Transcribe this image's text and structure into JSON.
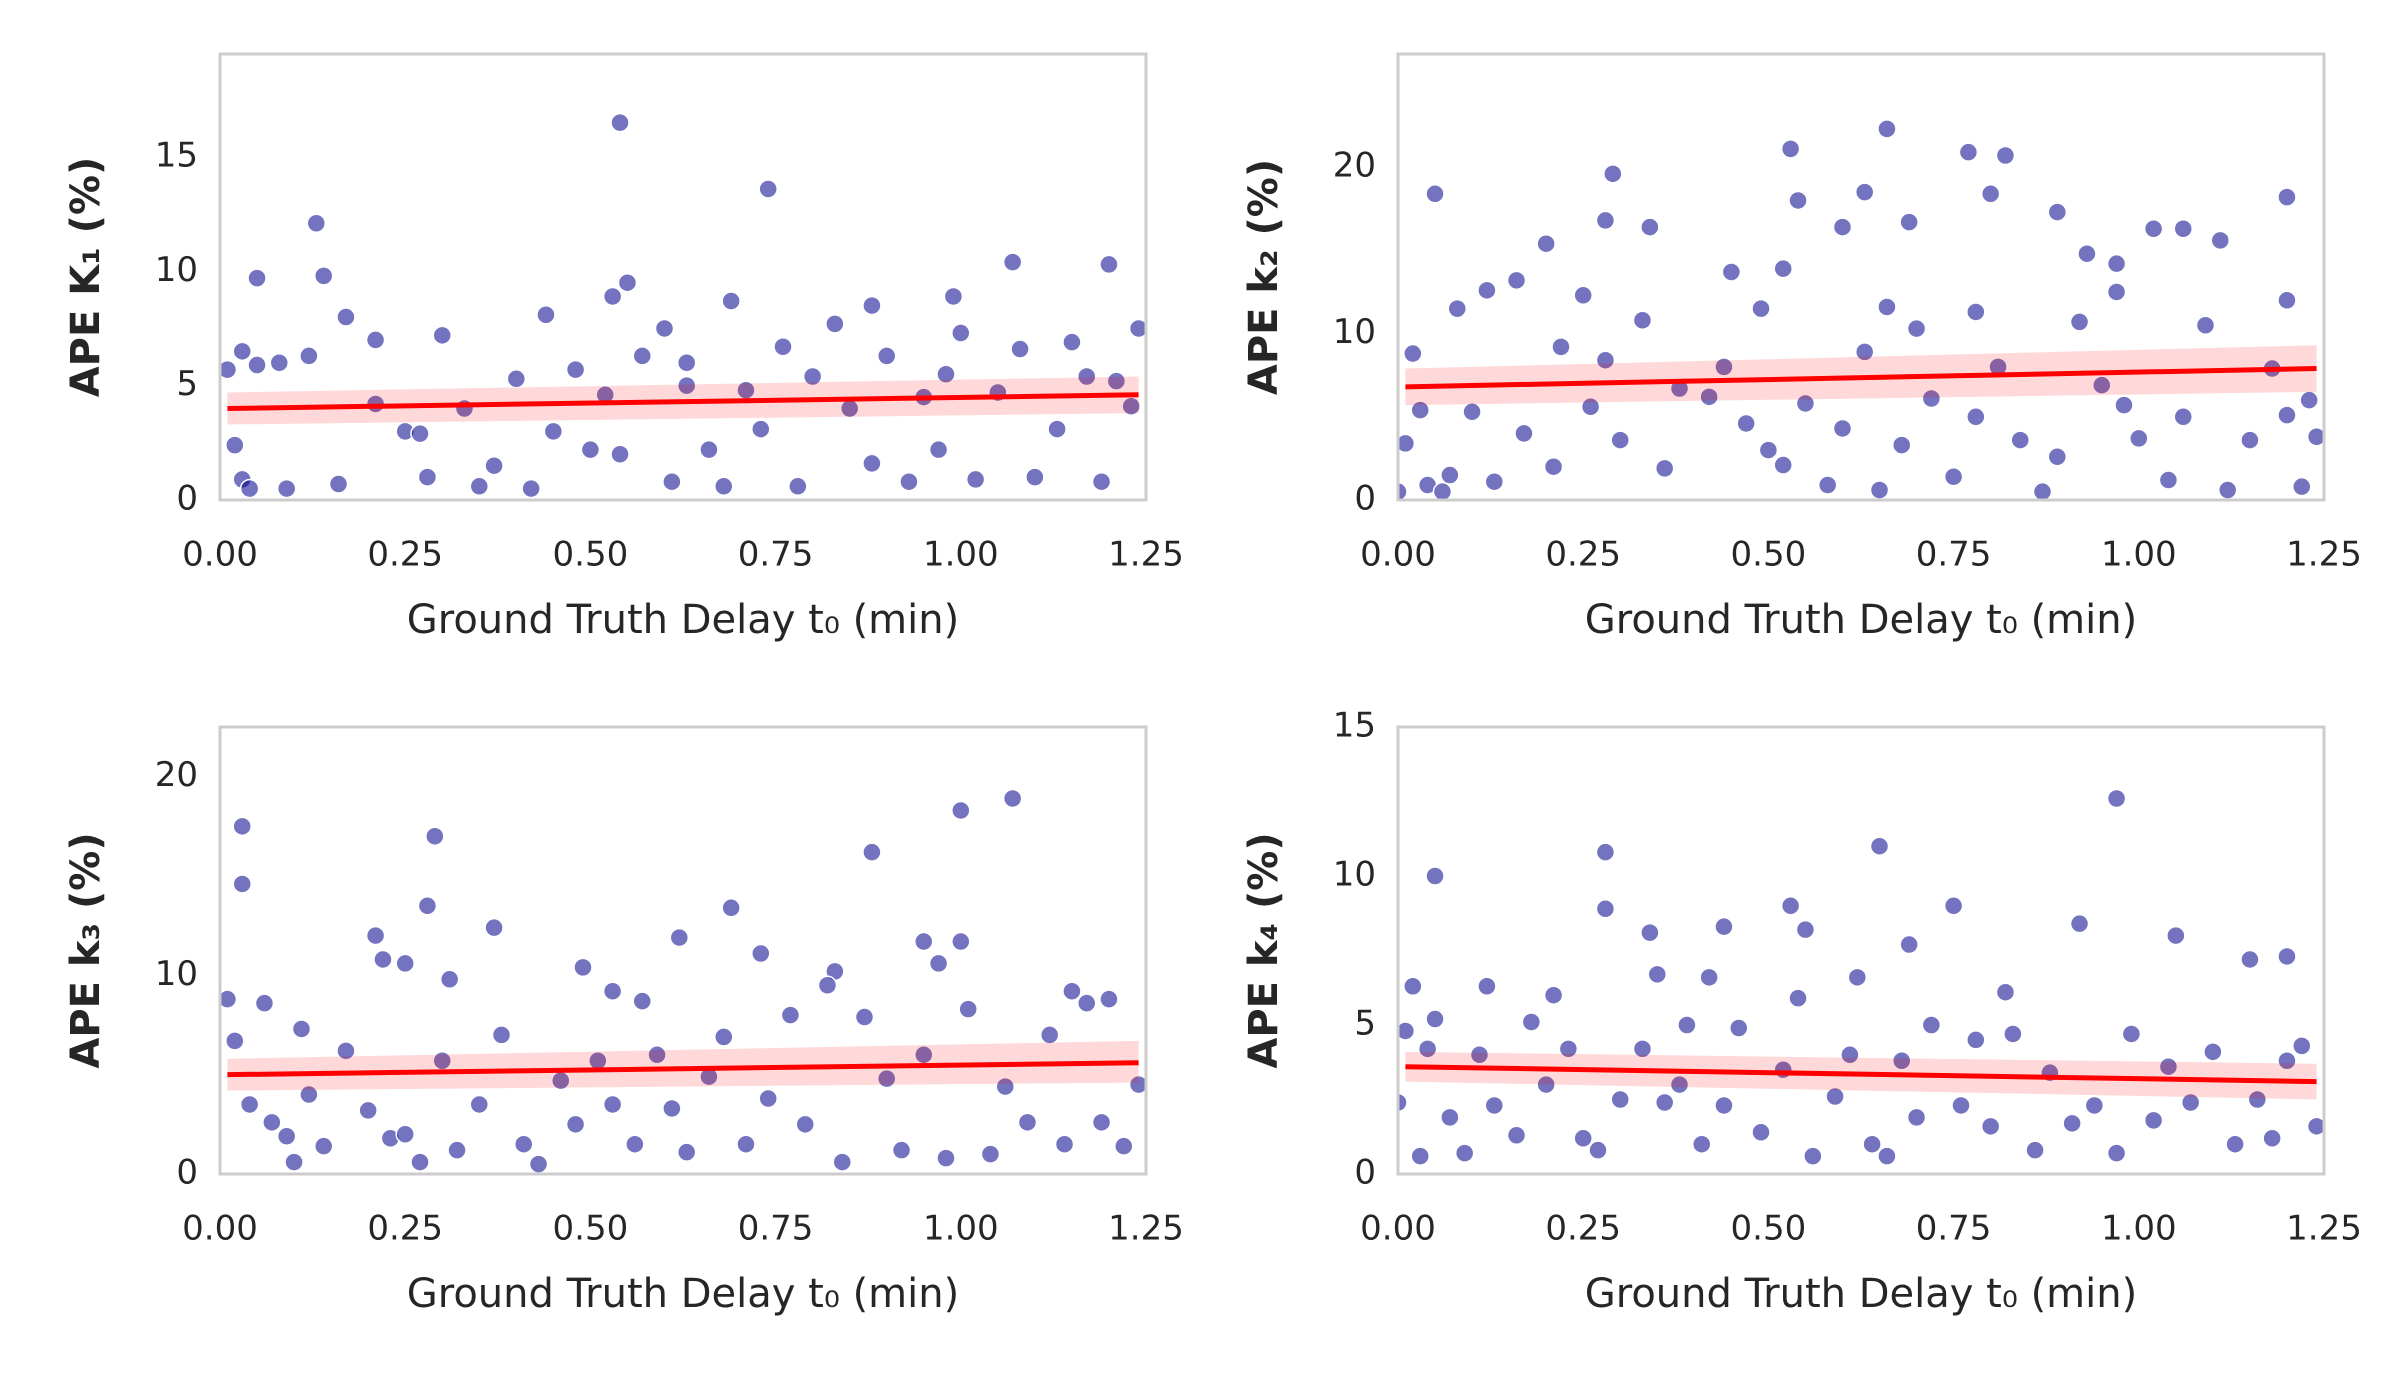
{
  "chart_data": [
    {
      "type": "scatter",
      "xlabel": "Ground Truth Delay t₀ (min)",
      "ylabel": "APE K₁ (%)",
      "color": "#00008b",
      "x": [
        0.54,
        0.74,
        0.13,
        0.14,
        0.05,
        1.07,
        1.2,
        0.99,
        0.53,
        0.55,
        0.69,
        0.88,
        0.17,
        0.44,
        0.01,
        0.03,
        0.05,
        0.08,
        0.12,
        0.02,
        0.03,
        0.04,
        0.09,
        0.16,
        0.21,
        0.21,
        0.25,
        0.27,
        0.28,
        0.3,
        0.33,
        0.35,
        0.37,
        0.4,
        0.45,
        0.48,
        0.5,
        0.52,
        0.54,
        0.57,
        0.6,
        0.61,
        0.63,
        0.66,
        0.68,
        0.71,
        0.73,
        0.76,
        0.78,
        0.8,
        0.83,
        0.85,
        0.88,
        0.9,
        0.93,
        0.95,
        0.97,
        1.0,
        1.02,
        1.05,
        1.08,
        1.1,
        1.13,
        1.15,
        1.17,
        1.19,
        1.21,
        1.23,
        1.24,
        0.42,
        0.98,
        0.63
      ],
      "y": [
        16.5,
        13.6,
        12.1,
        9.8,
        9.7,
        10.4,
        10.3,
        8.9,
        8.9,
        9.5,
        8.7,
        8.5,
        8.0,
        8.1,
        5.7,
        6.5,
        5.9,
        6.0,
        6.3,
        2.4,
        0.9,
        0.5,
        0.5,
        0.7,
        7.0,
        4.2,
        3.0,
        2.9,
        1.0,
        7.2,
        4.0,
        0.6,
        1.5,
        5.3,
        3.0,
        5.7,
        2.2,
        4.6,
        2.0,
        6.3,
        7.5,
        0.8,
        6.0,
        2.2,
        0.6,
        4.8,
        3.1,
        6.7,
        0.6,
        5.4,
        7.7,
        4.0,
        1.6,
        6.3,
        0.8,
        4.5,
        2.2,
        7.3,
        0.9,
        4.7,
        6.6,
        1.0,
        3.1,
        6.9,
        5.4,
        0.8,
        5.2,
        4.1,
        7.5,
        0.5,
        5.5,
        5.0
      ],
      "fit": {
        "color": "#ff0000",
        "x": [
          0.01,
          1.24
        ],
        "y": [
          4.0,
          4.6
        ],
        "lower": [
          3.3,
          3.8
        ],
        "upper": [
          4.7,
          5.4
        ]
      },
      "xlim": [
        0,
        1.25
      ],
      "xticks": [
        {
          "value": 0,
          "label": "0.00"
        },
        {
          "value": 0.25,
          "label": "0.25"
        },
        {
          "value": 0.5,
          "label": "0.50"
        },
        {
          "value": 0.75,
          "label": "0.75"
        },
        {
          "value": 1,
          "label": "1.00"
        },
        {
          "value": 1.25,
          "label": "1.25"
        }
      ],
      "ylim": [
        0,
        19.5
      ],
      "yticks": [
        0,
        5,
        10,
        15
      ],
      "grid": false
    },
    {
      "type": "scatter",
      "xlabel": "Ground Truth Delay t₀ (min)",
      "ylabel": "APE k₂ (%)",
      "color": "#00008b",
      "x": [
        0.66,
        0.53,
        0.77,
        0.82,
        0.29,
        0.05,
        0.63,
        0.54,
        0.8,
        1.2,
        0.89,
        0.34,
        0.28,
        0.69,
        0.6,
        1.02,
        1.06,
        0.2,
        0.93,
        0.97,
        1.11,
        0.16,
        0.45,
        0.52,
        0.25,
        0.12,
        0.08,
        0.49,
        0.66,
        0.78,
        0.97,
        1.2,
        0.02,
        0.03,
        0.04,
        0.06,
        0.07,
        0.1,
        0.13,
        0.17,
        0.21,
        0.22,
        0.26,
        0.28,
        0.3,
        0.33,
        0.36,
        0.38,
        0.42,
        0.44,
        0.47,
        0.5,
        0.52,
        0.55,
        0.58,
        0.6,
        0.63,
        0.65,
        0.68,
        0.7,
        0.72,
        0.75,
        0.78,
        0.81,
        0.84,
        0.87,
        0.89,
        0.92,
        0.95,
        0.98,
        1.0,
        1.04,
        1.06,
        1.09,
        1.12,
        1.15,
        1.18,
        1.2,
        1.22,
        1.24,
        1.23,
        0.01,
        0.0
      ],
      "y": [
        22.3,
        21.1,
        20.9,
        20.7,
        19.6,
        18.4,
        18.5,
        18.0,
        18.4,
        18.2,
        17.3,
        16.4,
        16.8,
        16.7,
        16.4,
        16.3,
        16.3,
        15.4,
        14.8,
        14.2,
        15.6,
        13.2,
        13.7,
        13.9,
        12.3,
        12.6,
        11.5,
        11.5,
        11.6,
        11.3,
        12.5,
        12.0,
        8.8,
        5.4,
        0.9,
        0.5,
        1.5,
        5.3,
        1.1,
        4.0,
        2.0,
        9.2,
        5.6,
        8.4,
        3.6,
        10.8,
        1.9,
        6.7,
        6.2,
        8.0,
        4.6,
        3.0,
        2.1,
        5.8,
        0.9,
        4.3,
        8.9,
        0.6,
        3.3,
        10.3,
        6.1,
        1.4,
        5.0,
        8.0,
        3.6,
        0.5,
        2.6,
        10.7,
        6.9,
        5.7,
        3.7,
        1.2,
        5.0,
        10.5,
        0.6,
        3.6,
        7.9,
        5.1,
        0.8,
        3.8,
        6.0,
        3.4,
        0.5
      ],
      "fit": {
        "color": "#ff0000",
        "x": [
          0.01,
          1.24
        ],
        "y": [
          6.8,
          7.9
        ],
        "lower": [
          5.7,
          6.5
        ],
        "upper": [
          7.9,
          9.3
        ]
      },
      "xlim": [
        0,
        1.25
      ],
      "xticks": [
        {
          "value": 0,
          "label": "0.00"
        },
        {
          "value": 0.25,
          "label": "0.25"
        },
        {
          "value": 0.5,
          "label": "0.50"
        },
        {
          "value": 0.75,
          "label": "0.75"
        },
        {
          "value": 1,
          "label": "1.00"
        },
        {
          "value": 1.25,
          "label": "1.25"
        }
      ],
      "ylim": [
        0,
        26.8
      ],
      "yticks": [
        0,
        10,
        20
      ],
      "grid": false
    },
    {
      "type": "scatter",
      "xlabel": "Ground Truth Delay t₀ (min)",
      "ylabel": "APE k₃ (%)",
      "color": "#00008b",
      "x": [
        1.07,
        1.0,
        0.03,
        0.29,
        0.88,
        0.03,
        0.28,
        0.69,
        0.37,
        0.21,
        0.62,
        0.95,
        1.0,
        0.73,
        0.22,
        0.25,
        0.49,
        0.83,
        0.97,
        0.01,
        0.06,
        0.31,
        0.53,
        0.57,
        1.15,
        1.2,
        0.02,
        0.04,
        0.07,
        0.09,
        0.1,
        0.12,
        0.14,
        0.17,
        0.2,
        0.23,
        0.27,
        0.3,
        0.32,
        0.35,
        0.38,
        0.41,
        0.43,
        0.46,
        0.48,
        0.51,
        0.53,
        0.56,
        0.59,
        0.61,
        0.63,
        0.66,
        0.68,
        0.71,
        0.74,
        0.77,
        0.79,
        0.82,
        0.84,
        0.87,
        0.9,
        0.92,
        0.95,
        0.98,
        1.01,
        1.04,
        1.06,
        1.09,
        1.12,
        1.14,
        1.17,
        1.19,
        1.22,
        1.24,
        0.11,
        0.25
      ],
      "y": [
        18.9,
        18.3,
        17.5,
        17.0,
        16.2,
        14.6,
        13.5,
        13.4,
        12.4,
        12.0,
        11.9,
        11.7,
        11.7,
        11.1,
        10.8,
        10.6,
        10.4,
        10.2,
        10.6,
        8.8,
        8.6,
        9.8,
        9.2,
        8.7,
        9.2,
        8.8,
        6.7,
        3.5,
        2.6,
        1.9,
        0.6,
        4.0,
        1.4,
        6.2,
        3.2,
        1.8,
        0.6,
        5.7,
        1.2,
        3.5,
        7.0,
        1.5,
        0.5,
        4.7,
        2.5,
        5.7,
        3.5,
        1.5,
        6.0,
        3.3,
        1.1,
        4.9,
        6.9,
        1.5,
        3.8,
        8.0,
        2.5,
        9.5,
        0.6,
        7.9,
        4.8,
        1.2,
        6.0,
        0.8,
        8.3,
        1.0,
        4.4,
        2.6,
        7.0,
        1.5,
        8.6,
        2.6,
        1.4,
        4.5,
        7.3,
        2.0
      ],
      "fit": {
        "color": "#ff0000",
        "x": [
          0.01,
          1.24
        ],
        "y": [
          5.0,
          5.6
        ],
        "lower": [
          4.2,
          4.6
        ],
        "upper": [
          5.8,
          6.7
        ]
      },
      "xlim": [
        0,
        1.25
      ],
      "xticks": [
        {
          "value": 0,
          "label": "0.00"
        },
        {
          "value": 0.25,
          "label": "0.25"
        },
        {
          "value": 0.5,
          "label": "0.50"
        },
        {
          "value": 0.75,
          "label": "0.75"
        },
        {
          "value": 1,
          "label": "1.00"
        },
        {
          "value": 1.25,
          "label": "1.25"
        }
      ],
      "ylim": [
        0,
        22.5
      ],
      "yticks": [
        0,
        10,
        20
      ],
      "grid": false
    },
    {
      "type": "scatter",
      "xlabel": "Ground Truth Delay t₀ (min)",
      "ylabel": "APE k₄ (%)",
      "color": "#00008b",
      "x": [
        0.97,
        0.65,
        0.28,
        0.05,
        0.53,
        0.75,
        0.28,
        0.92,
        0.55,
        0.44,
        0.34,
        1.05,
        0.69,
        1.2,
        1.15,
        0.35,
        0.42,
        0.62,
        0.02,
        0.12,
        0.21,
        0.82,
        0.01,
        0.04,
        0.05,
        0.03,
        0.07,
        0.09,
        0.11,
        0.13,
        0.16,
        0.18,
        0.2,
        0.23,
        0.25,
        0.27,
        0.3,
        0.33,
        0.36,
        0.39,
        0.41,
        0.44,
        0.46,
        0.49,
        0.52,
        0.54,
        0.56,
        0.59,
        0.61,
        0.64,
        0.66,
        0.68,
        0.7,
        0.72,
        0.76,
        0.78,
        0.8,
        0.83,
        0.86,
        0.88,
        0.91,
        0.94,
        0.97,
        0.99,
        1.02,
        1.04,
        1.07,
        1.1,
        1.13,
        1.16,
        1.18,
        1.2,
        1.22,
        1.24,
        0.38,
        0.0
      ],
      "y": [
        12.6,
        11.0,
        10.8,
        10.0,
        9.0,
        9.0,
        8.9,
        8.4,
        8.2,
        8.3,
        8.1,
        8.0,
        7.7,
        7.3,
        7.2,
        6.7,
        6.6,
        6.6,
        6.3,
        6.3,
        6.0,
        6.1,
        4.8,
        4.2,
        5.2,
        0.6,
        1.9,
        0.7,
        4.0,
        2.3,
        1.3,
        5.1,
        3.0,
        4.2,
        1.2,
        0.8,
        2.5,
        4.2,
        2.4,
        5.0,
        1.0,
        2.3,
        4.9,
        1.4,
        3.5,
        5.9,
        0.6,
        2.6,
        4.0,
        1.0,
        0.6,
        3.8,
        1.9,
        5.0,
        2.3,
        4.5,
        1.6,
        4.7,
        0.8,
        3.4,
        1.7,
        2.3,
        0.7,
        4.7,
        1.8,
        3.6,
        2.4,
        4.1,
        1.0,
        2.5,
        1.2,
        3.8,
        4.3,
        1.6,
        3.0,
        2.4
      ],
      "fit": {
        "color": "#ff0000",
        "x": [
          0.01,
          1.24
        ],
        "y": [
          3.6,
          3.1
        ],
        "lower": [
          3.1,
          2.5
        ],
        "upper": [
          4.1,
          3.7
        ]
      },
      "xlim": [
        0,
        1.25
      ],
      "xticks": [
        {
          "value": 0,
          "label": "0.00"
        },
        {
          "value": 0.25,
          "label": "0.25"
        },
        {
          "value": 0.5,
          "label": "0.50"
        },
        {
          "value": 0.75,
          "label": "0.75"
        },
        {
          "value": 1,
          "label": "1.00"
        },
        {
          "value": 1.25,
          "label": "1.25"
        }
      ],
      "ylim": [
        0,
        15
      ],
      "yticks": [
        0,
        5,
        10,
        15
      ],
      "grid": false
    }
  ]
}
